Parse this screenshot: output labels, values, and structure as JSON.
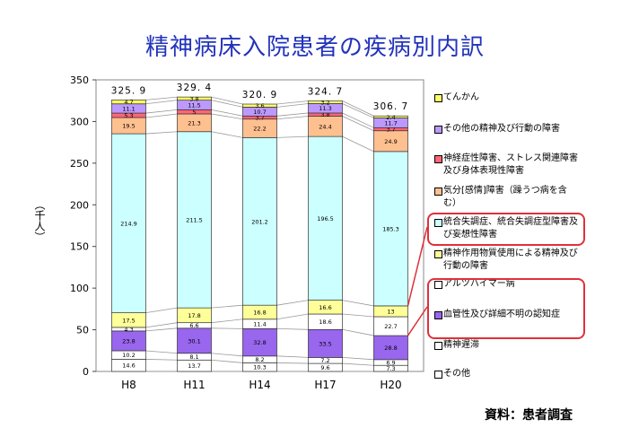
{
  "title": "精神病床入院患者の疾病別内訳",
  "source": "資料：患者調査",
  "chart_data": {
    "type": "stacked-bar",
    "ylabel": "（千人）",
    "ylim": [
      0,
      350
    ],
    "yticks": [
      "0",
      "50",
      "100",
      "150",
      "200",
      "250",
      "300",
      "350"
    ],
    "categories": [
      "H8",
      "H11",
      "H14",
      "H17",
      "H20"
    ],
    "totals": [
      "325.9",
      "329.4",
      "320.9",
      "324.7",
      "306.7"
    ],
    "series": [
      {
        "name": "その他",
        "color": "#ffffff",
        "values": [
          14.6,
          13.7,
          10.3,
          9.6,
          7.3
        ]
      },
      {
        "name": "精神遅滞",
        "color": "#ffffff",
        "values": [
          10.2,
          8.1,
          8.2,
          7.2,
          6.9
        ]
      },
      {
        "name": "血管性及び詳細不明の認知症",
        "color": "#9966ee",
        "values": [
          23.8,
          30.1,
          32.8,
          33.5,
          28.8
        ]
      },
      {
        "name": "アルツハイマー病",
        "color": "#ffffff",
        "values": [
          4.3,
          6.6,
          11.4,
          18.6,
          22.7
        ]
      },
      {
        "name": "精神作用物質使用による精神及び行動の障害",
        "color": "#ffff99",
        "values": [
          17.5,
          17.8,
          16.8,
          16.6,
          13
        ]
      },
      {
        "name": "統合失調症、統合失調症型障害及び妄想性障害",
        "color": "#ccffff",
        "values": [
          214.9,
          211.5,
          201.2,
          196.5,
          185.3
        ]
      },
      {
        "name": "気分[感情]障害（躁うつ病を含む）",
        "color": "#ffc090",
        "values": [
          19.5,
          21.3,
          22.2,
          24.4,
          24.9
        ]
      },
      {
        "name": "神経症性障害、ストレス関連障害及び身体表現性障害",
        "color": "#ff6677",
        "values": [
          5.3,
          5,
          3.7,
          3.8,
          3.7
        ]
      },
      {
        "name": "その他の精神及び行動の障害",
        "color": "#bb99ff",
        "values": [
          11.1,
          11.5,
          10.7,
          11.3,
          11.7
        ]
      },
      {
        "name": "てんかん",
        "color": "#ffff66",
        "values": [
          4.7,
          3.8,
          3.6,
          3.2,
          2.4
        ]
      }
    ]
  }
}
